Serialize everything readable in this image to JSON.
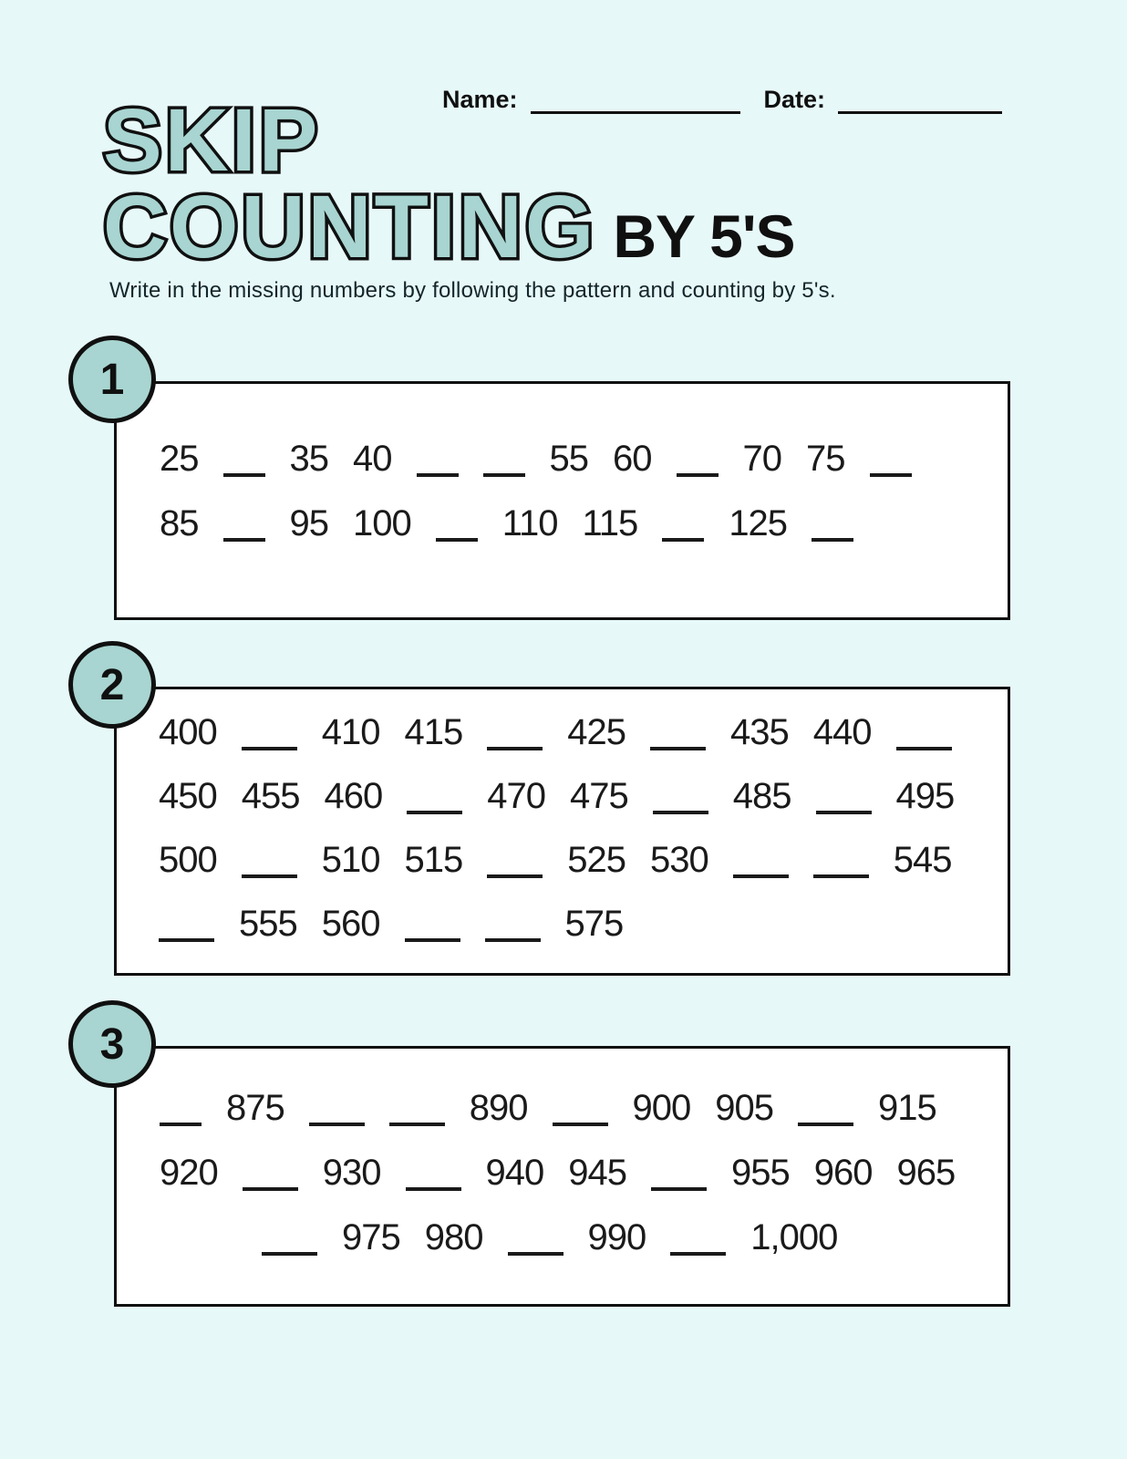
{
  "page": {
    "colors": {
      "background": "#e7f8f9",
      "accent": "#a8d5d1",
      "ink": "#101010"
    }
  },
  "header": {
    "name_label": "Name:",
    "date_label": "Date:"
  },
  "title": {
    "line1": "SKIP",
    "line2": "COUNTING",
    "suffix": "BY 5'S"
  },
  "instructions": "Write in the missing numbers by following the pattern and counting by 5's.",
  "problems": [
    {
      "number": "1",
      "rows": [
        {
          "indent": false,
          "items": [
            "25",
            "__",
            "35",
            "40",
            "__",
            "__",
            "55",
            "60",
            "__",
            "70",
            "75",
            "__"
          ]
        },
        {
          "indent": false,
          "items": [
            "85",
            "__",
            "95",
            "100",
            "__",
            "110",
            "115",
            "__",
            "125",
            "__"
          ]
        }
      ]
    },
    {
      "number": "2",
      "rows": [
        {
          "indent": false,
          "items": [
            "400",
            "___",
            "410",
            "415",
            "___",
            "425",
            "___",
            "435",
            "440",
            "___"
          ]
        },
        {
          "indent": false,
          "items": [
            "450",
            "455",
            "460",
            "___",
            "470",
            "475",
            "___",
            "485",
            "___",
            "495"
          ]
        },
        {
          "indent": false,
          "items": [
            "500",
            "___",
            "510",
            "515",
            "___",
            "525",
            "530",
            "___",
            "___",
            "545"
          ]
        },
        {
          "indent": false,
          "items": [
            "___",
            "555",
            "560",
            "___",
            "___",
            "575"
          ]
        }
      ]
    },
    {
      "number": "3",
      "rows": [
        {
          "indent": false,
          "items": [
            "__",
            "875",
            "___",
            "___",
            "890",
            "___",
            "900",
            "905",
            "___",
            "915"
          ]
        },
        {
          "indent": false,
          "items": [
            "920",
            "___",
            "930",
            "___",
            "940",
            "945",
            "___",
            "955",
            "960",
            "965"
          ]
        },
        {
          "indent": true,
          "items": [
            "___",
            "975",
            "980",
            "___",
            "990",
            "___",
            "1,000"
          ]
        }
      ]
    }
  ]
}
